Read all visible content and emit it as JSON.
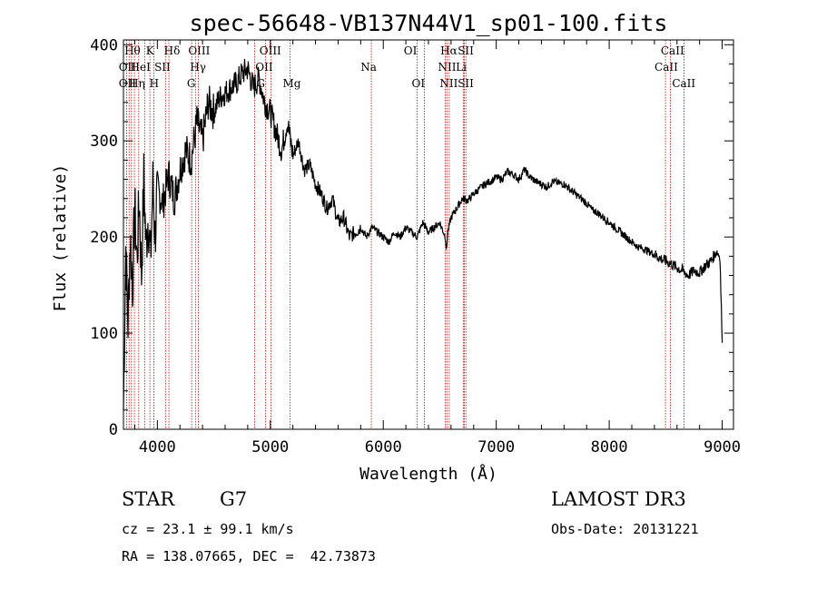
{
  "chart_data": {
    "type": "line",
    "title": "spec-56648-VB137N44V1_sp01-100.fits",
    "xlabel": "Wavelength (Å)",
    "ylabel": "Flux (relative)",
    "xlim": [
      3700,
      9100
    ],
    "ylim": [
      0,
      405
    ],
    "xticks": [
      4000,
      5000,
      6000,
      7000,
      8000,
      9000
    ],
    "yticks": [
      0,
      100,
      200,
      300,
      400
    ],
    "series": [
      {
        "name": "flux",
        "x": [
          3700,
          3720,
          3740,
          3760,
          3780,
          3800,
          3820,
          3840,
          3860,
          3880,
          3900,
          3920,
          3940,
          3960,
          3980,
          4000,
          4050,
          4100,
          4150,
          4200,
          4250,
          4300,
          4350,
          4400,
          4450,
          4500,
          4550,
          4600,
          4650,
          4700,
          4750,
          4800,
          4850,
          4900,
          4950,
          5000,
          5050,
          5100,
          5150,
          5200,
          5250,
          5300,
          5350,
          5400,
          5450,
          5500,
          5550,
          5600,
          5650,
          5700,
          5750,
          5800,
          5850,
          5900,
          5950,
          6000,
          6050,
          6100,
          6150,
          6200,
          6250,
          6300,
          6350,
          6400,
          6450,
          6500,
          6550,
          6560,
          6570,
          6600,
          6650,
          6700,
          6750,
          6800,
          6850,
          6900,
          6950,
          7000,
          7050,
          7100,
          7150,
          7200,
          7250,
          7300,
          7350,
          7400,
          7450,
          7500,
          7550,
          7600,
          7650,
          7700,
          7750,
          7800,
          7850,
          7900,
          7950,
          8000,
          8050,
          8100,
          8150,
          8200,
          8250,
          8300,
          8350,
          8400,
          8450,
          8500,
          8550,
          8600,
          8650,
          8700,
          8750,
          8800,
          8850,
          8900,
          8950,
          8980,
          9000
        ],
        "values": [
          20,
          190,
          110,
          200,
          150,
          230,
          175,
          240,
          160,
          260,
          190,
          225,
          175,
          255,
          200,
          250,
          235,
          265,
          240,
          270,
          290,
          280,
          320,
          300,
          340,
          330,
          345,
          350,
          355,
          360,
          370,
          375,
          355,
          365,
          340,
          330,
          310,
          290,
          320,
          285,
          300,
          270,
          275,
          255,
          245,
          230,
          240,
          215,
          220,
          200,
          205,
          210,
          200,
          210,
          205,
          200,
          195,
          205,
          200,
          210,
          205,
          200,
          215,
          205,
          210,
          215,
          200,
          185,
          205,
          220,
          230,
          240,
          238,
          245,
          250,
          255,
          258,
          262,
          260,
          268,
          265,
          260,
          270,
          262,
          258,
          255,
          252,
          258,
          256,
          255,
          250,
          245,
          240,
          235,
          228,
          225,
          220,
          215,
          210,
          205,
          200,
          195,
          190,
          188,
          185,
          182,
          178,
          175,
          172,
          168,
          165,
          160,
          165,
          163,
          170,
          175,
          185,
          180,
          90
        ]
      }
    ],
    "lines": [
      {
        "wl": 3728,
        "label": "OII"
      },
      {
        "wl": 3750,
        "label": "Hθ"
      },
      {
        "wl": 3771,
        "label": "Hη"
      },
      {
        "wl": 3797,
        "label": "OII"
      },
      {
        "wl": 3835,
        "label": "Hη"
      },
      {
        "wl": 3889,
        "label": "HeI"
      },
      {
        "wl": 3934,
        "label": "K"
      },
      {
        "wl": 3969,
        "label": "H"
      },
      {
        "wl": 4072,
        "label": "SII"
      },
      {
        "wl": 4102,
        "label": "Hδ"
      },
      {
        "wl": 4304,
        "label": "G"
      },
      {
        "wl": 4340,
        "label": "Hγ"
      },
      {
        "wl": 4363,
        "label": "OIII"
      },
      {
        "wl": 4861,
        "label": "OIII"
      },
      {
        "wl": 4959,
        "label": "OII"
      },
      {
        "wl": 5007,
        "label": "G"
      },
      {
        "wl": 5175,
        "label": "Mg"
      },
      {
        "wl": 5894,
        "label": "Na"
      },
      {
        "wl": 6300,
        "label": "OI"
      },
      {
        "wl": 6364,
        "label": "OI"
      },
      {
        "wl": 6548,
        "label": "NII"
      },
      {
        "wl": 6563,
        "label": "Hα"
      },
      {
        "wl": 6584,
        "label": "NII"
      },
      {
        "wl": 6708,
        "label": "Li"
      },
      {
        "wl": 6717,
        "label": "SII"
      },
      {
        "wl": 6731,
        "label": "SII"
      },
      {
        "wl": 8498,
        "label": "CaII"
      },
      {
        "wl": 8542,
        "label": "CaII"
      },
      {
        "wl": 8662,
        "label": "CaII"
      }
    ],
    "line_labels": [
      {
        "text": "Hθ",
        "wl": 3780,
        "row": 1
      },
      {
        "text": "K",
        "wl": 3935,
        "row": 1
      },
      {
        "text": "Hδ",
        "wl": 4130,
        "row": 1
      },
      {
        "text": "OIII",
        "wl": 4370,
        "row": 1
      },
      {
        "text": "OIII",
        "wl": 5000,
        "row": 1
      },
      {
        "text": "OI",
        "wl": 6240,
        "row": 1
      },
      {
        "text": "Hα",
        "wl": 6580,
        "row": 1
      },
      {
        "text": "SII",
        "wl": 6730,
        "row": 1
      },
      {
        "text": "CaII",
        "wl": 8560,
        "row": 1
      },
      {
        "text": "OII",
        "wl": 3735,
        "row": 2
      },
      {
        "text": "HeI",
        "wl": 3850,
        "row": 2
      },
      {
        "text": "SII",
        "wl": 4045,
        "row": 2
      },
      {
        "text": "Hγ",
        "wl": 4360,
        "row": 2
      },
      {
        "text": "OII",
        "wl": 4945,
        "row": 2
      },
      {
        "text": "Na",
        "wl": 5870,
        "row": 2
      },
      {
        "text": "NII",
        "wl": 6565,
        "row": 2
      },
      {
        "text": "Li",
        "wl": 6690,
        "row": 2
      },
      {
        "text": "CaII",
        "wl": 8505,
        "row": 2
      },
      {
        "text": "OII",
        "wl": 3735,
        "row": 3
      },
      {
        "text": "Hη",
        "wl": 3820,
        "row": 3
      },
      {
        "text": "H",
        "wl": 3972,
        "row": 3
      },
      {
        "text": "G",
        "wl": 4300,
        "row": 3
      },
      {
        "text": "G",
        "wl": 4915,
        "row": 3
      },
      {
        "text": "Mg",
        "wl": 5190,
        "row": 3
      },
      {
        "text": "OI",
        "wl": 6310,
        "row": 3
      },
      {
        "text": "NII",
        "wl": 6580,
        "row": 3
      },
      {
        "text": "SII",
        "wl": 6730,
        "row": 3
      },
      {
        "text": "CaII",
        "wl": 8660,
        "row": 3
      }
    ],
    "line_color": "#cc0000",
    "grid": false
  },
  "info": {
    "object_class": "STAR",
    "subclass": "G7",
    "survey": "LAMOST DR3",
    "redshift": "cz = 23.1 ± 99.1 km/s",
    "obs_date": "Obs-Date: 20131221",
    "coords": "RA = 138.07665, DEC =  42.73873"
  }
}
